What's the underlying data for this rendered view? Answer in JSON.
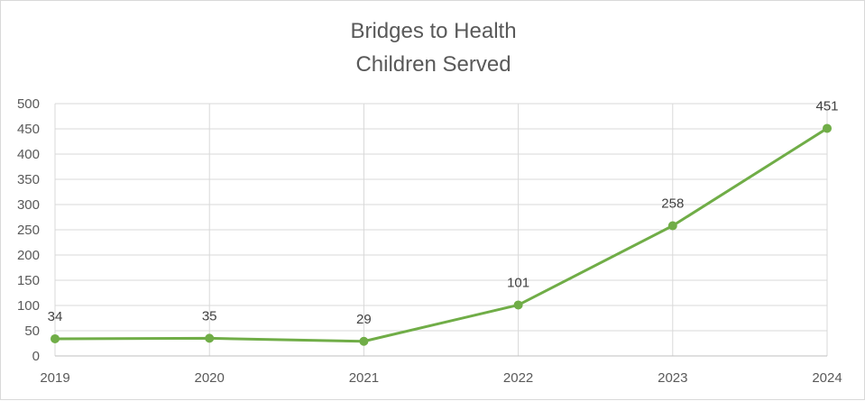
{
  "chart_data": {
    "type": "line",
    "title": [
      "Bridges to Health",
      "Children Served"
    ],
    "xlabel": "",
    "ylabel": "",
    "categories": [
      "2019",
      "2020",
      "2021",
      "2022",
      "2023",
      "2024"
    ],
    "series": [
      {
        "values": [
          34,
          35,
          29,
          101,
          258,
          451
        ],
        "color": "#70ad47"
      }
    ],
    "data_labels": [
      "34",
      "35",
      "29",
      "101",
      "258",
      "451"
    ],
    "ylim": [
      0,
      500
    ],
    "yticks": [
      "0",
      "50",
      "100",
      "150",
      "200",
      "250",
      "300",
      "350",
      "400",
      "450",
      "500"
    ],
    "grid": true,
    "legend": "none"
  }
}
